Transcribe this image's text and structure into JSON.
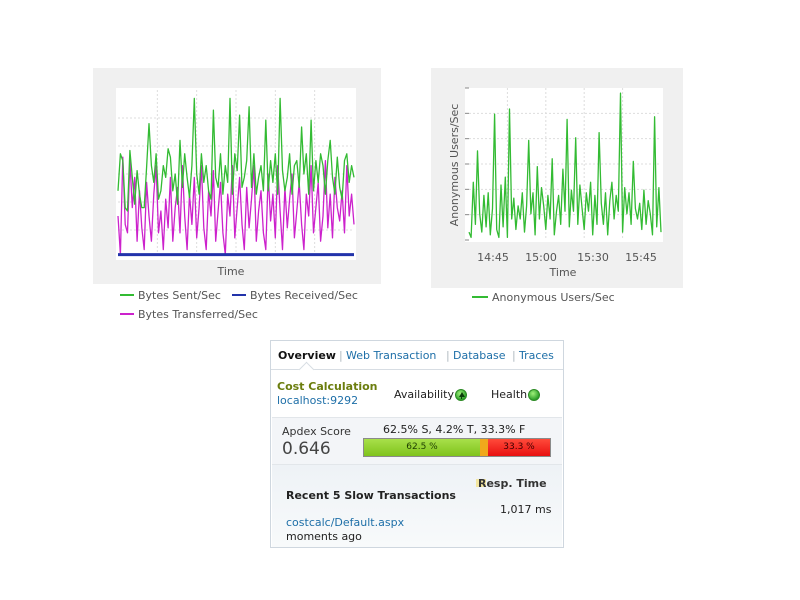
{
  "charts": {
    "throughput": {
      "xlabel": "Time",
      "legend": [
        {
          "label": "Bytes Sent/Sec",
          "color": "#33bb33"
        },
        {
          "label": "Bytes Received/Sec",
          "color": "#2233aa"
        },
        {
          "label": "Bytes Transferred/Sec",
          "color": "#cc22cc"
        }
      ]
    },
    "users": {
      "xlabel": "Time",
      "ylabel": "Anonymous Users/Sec",
      "ticks": [
        "14:45",
        "15:00",
        "15:30",
        "15:45"
      ],
      "legend": [
        {
          "label": "Anonymous Users/Sec",
          "color": "#33bb33"
        }
      ]
    }
  },
  "chart_data": [
    {
      "type": "line",
      "xlabel": "Time",
      "grid": true,
      "series": [
        {
          "name": "Bytes Sent/Sec",
          "color": "#33bb33",
          "values": [
            40,
            62,
            58,
            30,
            28,
            64,
            48,
            32,
            52,
            38,
            30,
            30,
            54,
            80,
            55,
            45,
            62,
            35,
            40,
            55,
            48,
            65,
            60,
            40,
            50,
            32,
            70,
            42,
            62,
            48,
            36,
            55,
            95,
            50,
            38,
            62,
            45,
            55,
            40,
            35,
            88,
            48,
            42,
            62,
            38,
            55,
            45,
            95,
            38,
            62,
            52,
            85,
            42,
            48,
            58,
            90,
            42,
            62,
            38,
            48,
            55,
            40,
            82,
            40,
            58,
            45,
            62,
            38,
            95,
            52,
            40,
            48,
            62,
            38,
            55,
            58,
            42,
            78,
            50,
            62,
            38,
            82,
            40,
            58,
            45,
            62,
            55,
            38,
            58,
            70,
            48,
            38,
            60,
            42,
            35,
            58,
            62,
            45,
            55,
            48
          ]
        },
        {
          "name": "Bytes Received/Sec",
          "color": "#2233aa",
          "values": [
            2,
            2,
            2,
            2,
            2,
            2,
            2,
            2,
            2,
            2,
            2,
            2,
            2,
            2,
            2,
            2,
            2,
            2,
            2,
            2,
            2,
            2,
            2,
            2,
            2,
            2,
            2,
            2,
            2,
            2,
            2,
            2,
            2,
            2,
            2,
            2,
            2,
            2,
            2,
            2,
            2,
            2,
            2,
            2,
            2,
            2,
            2,
            2,
            2,
            2,
            2,
            2,
            2,
            2,
            2,
            2,
            2,
            2,
            2,
            2,
            2,
            2,
            2,
            2,
            2,
            2,
            2,
            2,
            2,
            2,
            2,
            2,
            2,
            2,
            2,
            2,
            2,
            2,
            2,
            2,
            2,
            2,
            2,
            2,
            2,
            2,
            2,
            2,
            2,
            2,
            2,
            2,
            2,
            2,
            2,
            2,
            2,
            2,
            2,
            2
          ]
        },
        {
          "name": "Bytes Transferred/Sec",
          "color": "#cc22cc",
          "values": [
            25,
            2,
            60,
            20,
            15,
            58,
            30,
            48,
            10,
            40,
            18,
            5,
            45,
            25,
            10,
            38,
            55,
            15,
            28,
            5,
            35,
            18,
            48,
            10,
            30,
            42,
            15,
            55,
            25,
            5,
            38,
            20,
            48,
            12,
            30,
            55,
            18,
            5,
            40,
            25,
            52,
            10,
            28,
            45,
            15,
            2,
            38,
            25,
            55,
            12,
            30,
            48,
            20,
            5,
            42,
            18,
            35,
            55,
            10,
            28,
            40,
            15,
            5,
            50,
            22,
            38,
            12,
            55,
            28,
            5,
            42,
            18,
            35,
            50,
            12,
            28,
            45,
            20,
            5,
            38,
            25,
            55,
            15,
            30,
            45,
            10,
            25,
            58,
            18,
            38,
            12,
            48,
            30,
            22,
            40,
            15,
            55,
            25,
            38,
            20
          ]
        }
      ]
    },
    {
      "type": "line",
      "xlabel": "Time",
      "ylabel": "Anonymous Users/Sec",
      "x_ticks": [
        "14:45",
        "15:00",
        "15:30",
        "15:45"
      ],
      "grid": true,
      "series": [
        {
          "name": "Anonymous Users/Sec",
          "color": "#33bb33",
          "values": [
            3,
            1,
            22,
            6,
            34,
            10,
            3,
            17,
            5,
            18,
            2,
            12,
            48,
            4,
            1,
            21,
            5,
            24,
            1,
            50,
            8,
            16,
            4,
            13,
            8,
            18,
            3,
            13,
            38,
            10,
            18,
            2,
            28,
            8,
            20,
            13,
            4,
            17,
            8,
            31,
            2,
            11,
            17,
            6,
            27,
            11,
            46,
            5,
            19,
            11,
            39,
            6,
            21,
            12,
            4,
            18,
            11,
            22,
            2,
            17,
            6,
            41,
            14,
            6,
            18,
            2,
            15,
            22,
            8,
            17,
            11,
            56,
            3,
            20,
            10,
            18,
            6,
            30,
            12,
            8,
            14,
            4,
            19,
            6,
            15,
            10,
            2,
            47,
            5,
            20,
            3
          ]
        }
      ]
    }
  ],
  "widget": {
    "tabs": [
      {
        "label": "Overview",
        "active": true
      },
      {
        "label": "Web Transaction"
      },
      {
        "label": "Database"
      },
      {
        "label": "Traces"
      }
    ],
    "app_name": "Cost Calculation",
    "host": "localhost:9292",
    "availability_label": "Availability",
    "health_label": "Health",
    "apdex": {
      "label": "Apdex Score",
      "value": "0.646",
      "breakdown": "62.5% S, 4.2% T, 33.3% F",
      "satisfied_pct": 62.5,
      "tolerating_pct": 4.2,
      "frustrated_pct": 33.3,
      "satisfied_label": "62.5 %",
      "frustrated_label": "33.3 %",
      "colors": {
        "satisfied": "#7fc31c",
        "tolerating": "#f0a81c",
        "frustrated": "#e81010"
      }
    },
    "slow": {
      "title": "Recent 5 Slow Transactions",
      "resp_header": "Resp. Time",
      "transaction": "costcalc/Default.aspx",
      "time_ago": "moments ago",
      "resp_time": "1,017 ms"
    }
  }
}
